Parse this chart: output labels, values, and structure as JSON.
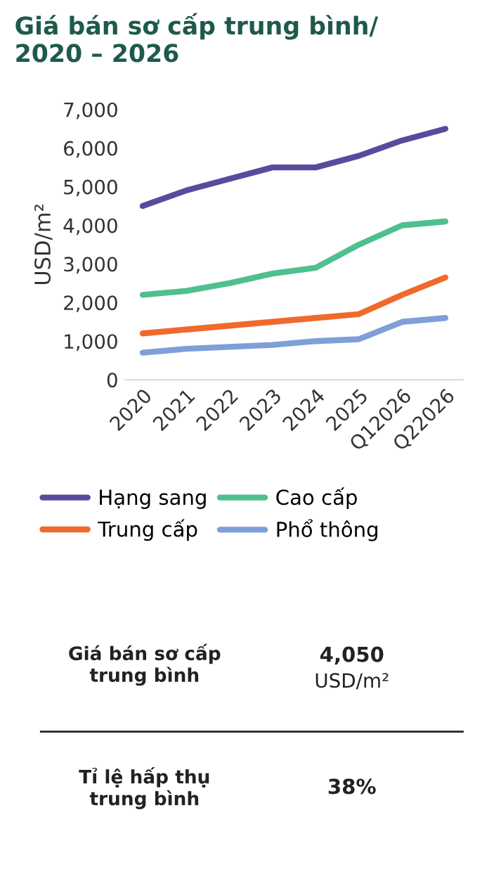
{
  "chart_data": {
    "type": "line",
    "title": "Giá bán sơ cấp trung bình/\n2020 – 2026",
    "ylabel": "USD/m²",
    "categories": [
      "2020",
      "2021",
      "2022",
      "2023",
      "2024",
      "2025",
      "Q12026",
      "Q22026"
    ],
    "series": [
      {
        "name": "Hạng sang",
        "color": "#5a4a9e",
        "values": [
          4500,
          4900,
          5200,
          5500,
          5500,
          5800,
          6200,
          6500
        ]
      },
      {
        "name": "Cao cấp",
        "color": "#4fbf8f",
        "values": [
          2200,
          2300,
          2500,
          2750,
          2900,
          3500,
          4000,
          4100
        ]
      },
      {
        "name": "Trung cấp",
        "color": "#ef6a2c",
        "values": [
          1200,
          1300,
          1400,
          1500,
          1600,
          1700,
          2200,
          2650
        ]
      },
      {
        "name": "Phổ thông",
        "color": "#7f9fd8",
        "values": [
          700,
          800,
          850,
          900,
          1000,
          1050,
          1500,
          1600
        ]
      }
    ],
    "ylim": [
      0,
      7000
    ],
    "yticks": [
      {
        "value": 0,
        "label": "0"
      },
      {
        "value": 1000,
        "label": "1,000"
      },
      {
        "value": 2000,
        "label": "2,000"
      },
      {
        "value": 3000,
        "label": "3,000"
      },
      {
        "value": 4000,
        "label": "4,000"
      },
      {
        "value": 5000,
        "label": "5,000"
      },
      {
        "value": 6000,
        "label": "6,000"
      },
      {
        "value": 7000,
        "label": "7,000"
      }
    ],
    "grid": false,
    "legend": "bottom",
    "marker": "none",
    "line_style": "solid",
    "annotations": [
      "Giá bán sơ cấp\ntrung bình",
      "4,050",
      "USD/m²",
      "Tỉ lệ hấp thụ\ntrung bình",
      "38%"
    ]
  }
}
